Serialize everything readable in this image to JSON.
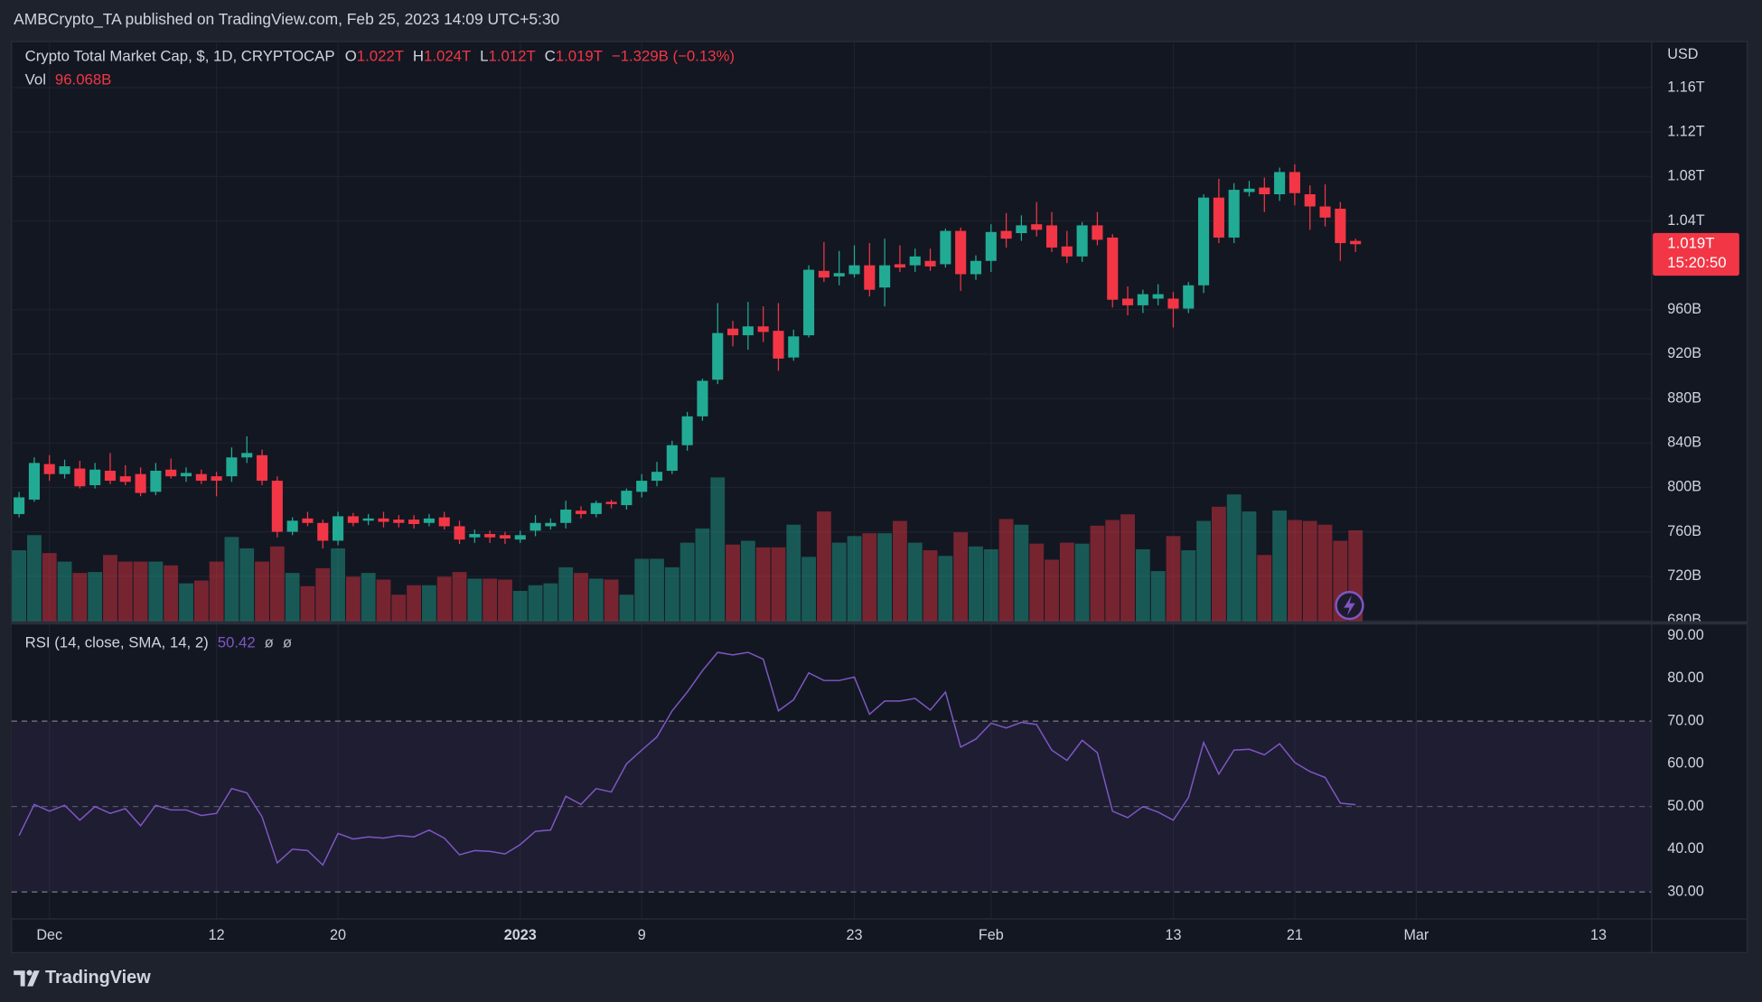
{
  "header": {
    "publisher": "AMBCrypto_TA published on TradingView.com, Feb 25, 2023 14:09 UTC+5:30"
  },
  "footer": {
    "brand": "TradingView"
  },
  "chart_data": [
    {
      "type": "candlestick",
      "legend": {
        "symbol": "Crypto Total Market Cap, $, 1D, CRYPTOCAP",
        "ohlc": [
          {
            "label": "O",
            "value": "1.022T"
          },
          {
            "label": "H",
            "value": "1.024T"
          },
          {
            "label": "L",
            "value": "1.012T"
          },
          {
            "label": "C",
            "value": "1.019T"
          }
        ],
        "change": "−1.329B (−0.13%)",
        "volume_label": "Vol",
        "volume_value": "96.068B"
      },
      "currency": "USD",
      "price_label": "1.019T",
      "countdown": "15:20:50",
      "up_color": "#22ab94",
      "down_color": "#f23645",
      "grid": true,
      "x": [
        "2022-11-29",
        "2022-11-30",
        "2022-12-01",
        "2022-12-02",
        "2022-12-03",
        "2022-12-04",
        "2022-12-05",
        "2022-12-06",
        "2022-12-07",
        "2022-12-08",
        "2022-12-09",
        "2022-12-10",
        "2022-12-11",
        "2022-12-12",
        "2022-12-13",
        "2022-12-14",
        "2022-12-15",
        "2022-12-16",
        "2022-12-17",
        "2022-12-18",
        "2022-12-19",
        "2022-12-20",
        "2022-12-21",
        "2022-12-22",
        "2022-12-23",
        "2022-12-24",
        "2022-12-25",
        "2022-12-26",
        "2022-12-27",
        "2022-12-28",
        "2022-12-29",
        "2022-12-30",
        "2022-12-31",
        "2023-01-01",
        "2023-01-02",
        "2023-01-03",
        "2023-01-04",
        "2023-01-05",
        "2023-01-06",
        "2023-01-07",
        "2023-01-08",
        "2023-01-09",
        "2023-01-10",
        "2023-01-11",
        "2023-01-12",
        "2023-01-13",
        "2023-01-14",
        "2023-01-15",
        "2023-01-16",
        "2023-01-17",
        "2023-01-18",
        "2023-01-19",
        "2023-01-20",
        "2023-01-21",
        "2023-01-22",
        "2023-01-23",
        "2023-01-24",
        "2023-01-25",
        "2023-01-26",
        "2023-01-27",
        "2023-01-28",
        "2023-01-29",
        "2023-01-30",
        "2023-01-31",
        "2023-02-01",
        "2023-02-02",
        "2023-02-03",
        "2023-02-04",
        "2023-02-05",
        "2023-02-06",
        "2023-02-07",
        "2023-02-08",
        "2023-02-09",
        "2023-02-10",
        "2023-02-11",
        "2023-02-12",
        "2023-02-13",
        "2023-02-14",
        "2023-02-15",
        "2023-02-16",
        "2023-02-17",
        "2023-02-18",
        "2023-02-19",
        "2023-02-20",
        "2023-02-21",
        "2023-02-22",
        "2023-02-23",
        "2023-02-24",
        "2023-02-25"
      ],
      "open": [
        776,
        789,
        821,
        812,
        817,
        802,
        815,
        810,
        812,
        796,
        816,
        810,
        812,
        810,
        810,
        827,
        829,
        806,
        760,
        772,
        768,
        752,
        774,
        770,
        772,
        771,
        771,
        768,
        773,
        765,
        755,
        758,
        757,
        753,
        761,
        765,
        768,
        779,
        776,
        787,
        784,
        796,
        806,
        815,
        838,
        864,
        897,
        943,
        937,
        945,
        941,
        917,
        937,
        995,
        990,
        992,
        1000,
        980,
        1001,
        1000,
        1004,
        1001,
        1031,
        992,
        1004,
        1031,
        1029,
        1037,
        1036,
        1017,
        1008,
        1036,
        1025,
        970,
        964,
        970,
        970,
        961,
        982,
        1061,
        1025,
        1066,
        1070,
        1064,
        1084,
        1064,
        1053,
        1051,
        1022
      ],
      "high": [
        796,
        827,
        829,
        825,
        824,
        822,
        831,
        820,
        818,
        822,
        826,
        818,
        816,
        814,
        836,
        846,
        834,
        810,
        773,
        778,
        771,
        778,
        777,
        776,
        778,
        775,
        775,
        776,
        778,
        770,
        762,
        761,
        760,
        761,
        775,
        772,
        788,
        783,
        788,
        789,
        799,
        812,
        823,
        842,
        868,
        898,
        966,
        950,
        967,
        963,
        966,
        942,
        1000,
        1021,
        1013,
        1018,
        1020,
        1024,
        1018,
        1015,
        1015,
        1033,
        1034,
        1009,
        1037,
        1047,
        1045,
        1057,
        1048,
        1031,
        1039,
        1048,
        1028,
        981,
        978,
        983,
        976,
        985,
        1064,
        1078,
        1074,
        1076,
        1079,
        1088,
        1091,
        1072,
        1073,
        1057,
        1024
      ],
      "low": [
        773,
        787,
        806,
        808,
        799,
        799,
        803,
        802,
        792,
        793,
        808,
        805,
        803,
        792,
        805,
        822,
        802,
        755,
        757,
        765,
        745,
        748,
        765,
        766,
        764,
        764,
        763,
        765,
        762,
        749,
        750,
        750,
        749,
        750,
        756,
        762,
        763,
        772,
        773,
        781,
        780,
        791,
        801,
        812,
        833,
        860,
        893,
        927,
        924,
        931,
        905,
        914,
        935,
        985,
        982,
        989,
        972,
        963,
        994,
        994,
        995,
        998,
        977,
        987,
        994,
        1016,
        1022,
        1026,
        1012,
        1002,
        1003,
        1018,
        962,
        955,
        957,
        964,
        944,
        957,
        975,
        1020,
        1020,
        1062,
        1048,
        1058,
        1054,
        1032,
        1035,
        1004,
        1012
      ],
      "close": [
        791,
        822,
        812,
        819,
        801,
        816,
        806,
        805,
        795,
        815,
        810,
        813,
        806,
        806,
        827,
        831,
        806,
        760,
        770,
        768,
        752,
        774,
        768,
        772,
        769,
        768,
        767,
        772,
        765,
        753,
        758,
        755,
        754,
        757,
        768,
        768,
        780,
        776,
        786,
        785,
        797,
        806,
        814,
        838,
        864,
        896,
        939,
        937,
        945,
        940,
        916,
        936,
        996,
        989,
        993,
        1000,
        978,
        1000,
        998,
        1008,
        999,
        1031,
        992,
        1004,
        1030,
        1024,
        1036,
        1032,
        1016,
        1008,
        1036,
        1023,
        969,
        964,
        974,
        974,
        961,
        982,
        1061,
        1025,
        1068,
        1069,
        1064,
        1084,
        1065,
        1053,
        1043,
        1020,
        1019
      ],
      "volume": [
        75,
        91,
        72,
        63,
        51,
        52,
        70,
        63,
        63,
        63,
        59,
        40,
        43,
        63,
        89,
        77,
        63,
        79,
        51,
        37,
        56,
        77,
        47,
        51,
        44,
        28,
        38,
        38,
        47,
        52,
        45,
        45,
        44,
        32,
        38,
        40,
        57,
        51,
        45,
        44,
        28,
        66,
        66,
        57,
        83,
        98,
        152,
        81,
        85,
        78,
        78,
        102,
        68,
        116,
        83,
        90,
        93,
        93,
        106,
        83,
        75,
        69,
        94,
        79,
        76,
        108,
        102,
        82,
        65,
        83,
        82,
        101,
        107,
        113,
        76,
        53,
        90,
        75,
        106,
        121,
        134,
        116,
        70,
        117,
        107,
        106,
        102,
        85,
        96.068
      ],
      "xlim": [
        "2022-11-29",
        "2023-03-16"
      ],
      "ylim": [
        679.5,
        1200.5
      ],
      "yticks": [
        {
          "value": 680,
          "label": "680B"
        },
        {
          "value": 720,
          "label": "720B"
        },
        {
          "value": 760,
          "label": "760B"
        },
        {
          "value": 800,
          "label": "800B"
        },
        {
          "value": 840,
          "label": "840B"
        },
        {
          "value": 880,
          "label": "880B"
        },
        {
          "value": 920,
          "label": "920B"
        },
        {
          "value": 960,
          "label": "960B"
        },
        {
          "value": 1040,
          "label": "1.04T"
        },
        {
          "value": 1080,
          "label": "1.08T"
        },
        {
          "value": 1120,
          "label": "1.12T"
        },
        {
          "value": 1160,
          "label": "1.16T"
        }
      ]
    },
    {
      "type": "line",
      "title": "RSI (14, close, SMA, 14, 2)",
      "extra": [
        "ø",
        "ø"
      ],
      "color": "#7e57c2",
      "band": [
        30,
        70
      ],
      "midline": 50,
      "x": [
        "2022-11-29",
        "2022-11-30",
        "2022-12-01",
        "2022-12-02",
        "2022-12-03",
        "2022-12-04",
        "2022-12-05",
        "2022-12-06",
        "2022-12-07",
        "2022-12-08",
        "2022-12-09",
        "2022-12-10",
        "2022-12-11",
        "2022-12-12",
        "2022-12-13",
        "2022-12-14",
        "2022-12-15",
        "2022-12-16",
        "2022-12-17",
        "2022-12-18",
        "2022-12-19",
        "2022-12-20",
        "2022-12-21",
        "2022-12-22",
        "2022-12-23",
        "2022-12-24",
        "2022-12-25",
        "2022-12-26",
        "2022-12-27",
        "2022-12-28",
        "2022-12-29",
        "2022-12-30",
        "2022-12-31",
        "2023-01-01",
        "2023-01-02",
        "2023-01-03",
        "2023-01-04",
        "2023-01-05",
        "2023-01-06",
        "2023-01-07",
        "2023-01-08",
        "2023-01-09",
        "2023-01-10",
        "2023-01-11",
        "2023-01-12",
        "2023-01-13",
        "2023-01-14",
        "2023-01-15",
        "2023-01-16",
        "2023-01-17",
        "2023-01-18",
        "2023-01-19",
        "2023-01-20",
        "2023-01-21",
        "2023-01-22",
        "2023-01-23",
        "2023-01-24",
        "2023-01-25",
        "2023-01-26",
        "2023-01-27",
        "2023-01-28",
        "2023-01-29",
        "2023-01-30",
        "2023-01-31",
        "2023-02-01",
        "2023-02-02",
        "2023-02-03",
        "2023-02-04",
        "2023-02-05",
        "2023-02-06",
        "2023-02-07",
        "2023-02-08",
        "2023-02-09",
        "2023-02-10",
        "2023-02-11",
        "2023-02-12",
        "2023-02-13",
        "2023-02-14",
        "2023-02-15",
        "2023-02-16",
        "2023-02-17",
        "2023-02-18",
        "2023-02-19",
        "2023-02-20",
        "2023-02-21",
        "2023-02-22",
        "2023-02-23",
        "2023-02-24",
        "2023-02-25"
      ],
      "values": [
        43.2,
        50.5,
        48.9,
        50.3,
        46.8,
        50,
        48.4,
        49.5,
        45.5,
        50.3,
        49.2,
        49.2,
        47.9,
        48.4,
        54.2,
        53.2,
        47.6,
        36.8,
        40,
        39.7,
        36.3,
        43.7,
        42.4,
        42.9,
        42.6,
        43.2,
        42.9,
        44.5,
        42.6,
        38.7,
        39.7,
        39.5,
        38.9,
        41.1,
        44.2,
        44.5,
        52.4,
        50.5,
        54.2,
        53.4,
        60,
        63.2,
        66.3,
        72.4,
        76.8,
        81.8,
        86.1,
        85.5,
        86.1,
        84.5,
        72.4,
        75,
        81.3,
        79.5,
        79.5,
        80.3,
        71.6,
        74.7,
        74.7,
        75.3,
        72.6,
        76.8,
        63.9,
        65.8,
        69.5,
        68.4,
        69.7,
        69.2,
        63.2,
        60.8,
        65.5,
        62.6,
        48.9,
        47.4,
        50,
        48.7,
        46.8,
        52.1,
        65,
        57.6,
        63.2,
        63.4,
        62.1,
        64.7,
        60.3,
        58.2,
        56.8,
        50.8,
        50.42
      ],
      "xlim": [
        "2022-11-29",
        "2023-03-16"
      ],
      "xticks": [
        {
          "value": "2022-12-01",
          "label": "Dec"
        },
        {
          "value": "2022-12-12",
          "label": "12"
        },
        {
          "value": "2022-12-20",
          "label": "20"
        },
        {
          "value": "2023-01-01",
          "label": "2023"
        },
        {
          "value": "2023-01-09",
          "label": "9"
        },
        {
          "value": "2023-01-23",
          "label": "23"
        },
        {
          "value": "2023-02-01",
          "label": "Feb"
        },
        {
          "value": "2023-02-13",
          "label": "13"
        },
        {
          "value": "2023-02-21",
          "label": "21"
        },
        {
          "value": "2023-03-01",
          "label": "Mar"
        },
        {
          "value": "2023-03-13",
          "label": "13"
        }
      ],
      "ylim": [
        23.7,
        92.6
      ],
      "yticks": [
        {
          "value": 30,
          "label": "30.00"
        },
        {
          "value": 40,
          "label": "40.00"
        },
        {
          "value": 50,
          "label": "50.00"
        },
        {
          "value": 60,
          "label": "60.00"
        },
        {
          "value": 70,
          "label": "70.00"
        },
        {
          "value": 80,
          "label": "80.00"
        },
        {
          "value": 90,
          "label": "90.00"
        }
      ]
    }
  ]
}
